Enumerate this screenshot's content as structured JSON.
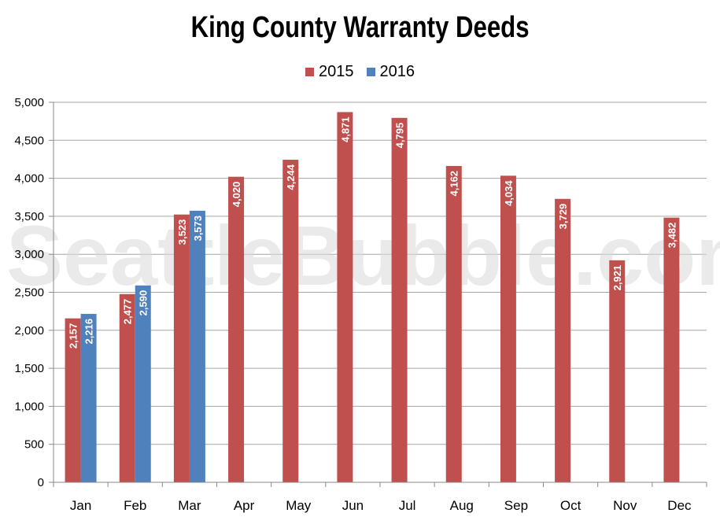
{
  "chart_data": {
    "type": "bar",
    "title": "King County Warranty Deeds",
    "categories": [
      "Jan",
      "Feb",
      "Mar",
      "Apr",
      "May",
      "Jun",
      "Jul",
      "Aug",
      "Sep",
      "Oct",
      "Nov",
      "Dec"
    ],
    "series": [
      {
        "name": "2015",
        "color": "#c0504d",
        "values": [
          2157,
          2477,
          3523,
          4020,
          4244,
          4871,
          4795,
          4162,
          4034,
          3729,
          2921,
          3482
        ]
      },
      {
        "name": "2016",
        "color": "#4f81bd",
        "values": [
          2216,
          2590,
          3573,
          null,
          null,
          null,
          null,
          null,
          null,
          null,
          null,
          null
        ]
      }
    ],
    "data_labels": [
      [
        "2,157",
        "2,477",
        "3,523",
        "4,020",
        "4,244",
        "4,871",
        "4,795",
        "4,162",
        "4,034",
        "3,729",
        "2,921",
        "3,482"
      ],
      [
        "2,216",
        "2,590",
        "3,573",
        null,
        null,
        null,
        null,
        null,
        null,
        null,
        null,
        null
      ]
    ],
    "ylim": [
      0,
      5000
    ],
    "yticks": [
      0,
      500,
      1000,
      1500,
      2000,
      2500,
      3000,
      3500,
      4000,
      4500,
      5000
    ],
    "ytick_labels": [
      "0",
      "500",
      "1,000",
      "1,500",
      "2,000",
      "2,500",
      "3,000",
      "3,500",
      "4,000",
      "4,500",
      "5,000"
    ],
    "grid": true,
    "legend_position": "top-center",
    "watermark": "SeattleBubble.com"
  }
}
